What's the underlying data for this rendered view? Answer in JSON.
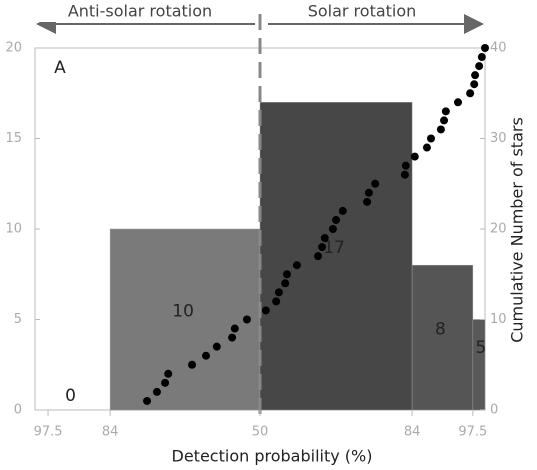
{
  "chart_data": {
    "type": "histogram",
    "panel_label": "A",
    "annotations": [
      "Anti-solar rotation",
      "Solar rotation"
    ],
    "xlabel": "Detection probability (%)",
    "y2label": "Cumulative Number of stars",
    "xlim": [
      0,
      100
    ],
    "xticks": [
      {
        "value": 2.9,
        "label": "97.5"
      },
      {
        "value": 16.7,
        "label": "84"
      },
      {
        "value": 50,
        "label": "50"
      },
      {
        "value": 83.8,
        "label": "84"
      },
      {
        "value": 97.3,
        "label": "97.5"
      }
    ],
    "bins": [
      0,
      16.7,
      50,
      83.8,
      97.3,
      100
    ],
    "values": [
      0,
      10,
      17,
      8,
      5
    ],
    "colors": [
      "#808080",
      "#7a7a7a",
      "#474747",
      "#555555",
      "#595959"
    ],
    "ylim": [
      0,
      20
    ],
    "yticks": [
      0,
      5,
      10,
      15,
      20
    ],
    "y2lim": [
      0,
      40
    ],
    "y2ticks": [
      0,
      10,
      20,
      30,
      40
    ],
    "points": {
      "axis": "y2",
      "color": "#000000",
      "x": [
        24.9,
        27.1,
        28.9,
        29.6,
        34.9,
        38,
        40.4,
        43.8,
        44.4,
        47.1,
        51.3,
        53.6,
        54.2,
        55.6,
        56,
        58.2,
        62.9,
        63.8,
        64.4,
        66.2,
        66.9,
        68.4,
        73.8,
        74.2,
        75.6,
        82.2,
        82.4,
        84.4,
        87.1,
        88,
        90.2,
        90.9,
        91.3,
        94,
        96.7,
        97.6,
        97.8,
        98.7,
        99.3,
        100
      ],
      "values": [
        1,
        2,
        3,
        4,
        5,
        6,
        7,
        8,
        9,
        10,
        11,
        12,
        13,
        14,
        15,
        16,
        17,
        18,
        19,
        20,
        21,
        22,
        23,
        24,
        25,
        26,
        27,
        28,
        29,
        30,
        31,
        32,
        33,
        34,
        35,
        36,
        37,
        38,
        39,
        40
      ]
    }
  }
}
